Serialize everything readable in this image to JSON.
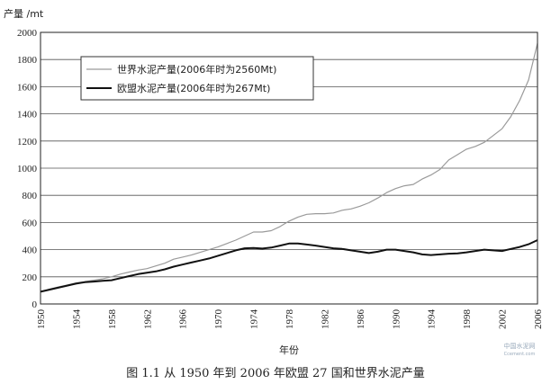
{
  "chart_data": {
    "type": "line",
    "title": "",
    "xlabel": "年份",
    "ylabel": "产量 /mt",
    "xlim": [
      1950,
      2006
    ],
    "ylim": [
      0,
      2000
    ],
    "x_ticks": [
      1950,
      1954,
      1958,
      1962,
      1966,
      1970,
      1974,
      1978,
      1982,
      1986,
      1990,
      1994,
      1998,
      2002,
      2006
    ],
    "y_ticks": [
      0,
      200,
      400,
      600,
      800,
      1000,
      1200,
      1400,
      1600,
      1800,
      2000
    ],
    "grid": true,
    "legend_position": "top-left",
    "x": [
      1950,
      1951,
      1952,
      1953,
      1954,
      1955,
      1956,
      1957,
      1958,
      1959,
      1960,
      1961,
      1962,
      1963,
      1964,
      1965,
      1966,
      1967,
      1968,
      1969,
      1970,
      1971,
      1972,
      1973,
      1974,
      1975,
      1976,
      1977,
      1978,
      1979,
      1980,
      1981,
      1982,
      1983,
      1984,
      1985,
      1986,
      1987,
      1988,
      1989,
      1990,
      1991,
      1992,
      1993,
      1994,
      1995,
      1996,
      1997,
      1998,
      1999,
      2000,
      2001,
      2002,
      2003,
      2004,
      2005,
      2006
    ],
    "series": [
      {
        "name": "世界水泥产量(2006年时为2560Mt)",
        "color": "#9a9a9a",
        "values": [
          90,
          110,
          125,
          140,
          155,
          165,
          175,
          185,
          200,
          220,
          235,
          250,
          260,
          280,
          300,
          330,
          345,
          360,
          380,
          400,
          420,
          445,
          470,
          500,
          530,
          530,
          540,
          570,
          610,
          640,
          660,
          665,
          665,
          670,
          690,
          700,
          720,
          745,
          780,
          820,
          850,
          870,
          880,
          920,
          950,
          990,
          1060,
          1100,
          1140,
          1160,
          1190,
          1240,
          1290,
          1380,
          1500,
          1650,
          1920
        ]
      },
      {
        "name": "欧盟水泥产量(2006年时为267Mt)",
        "color": "#111111",
        "values": [
          90,
          105,
          120,
          135,
          150,
          160,
          165,
          170,
          175,
          190,
          205,
          220,
          230,
          240,
          255,
          275,
          290,
          305,
          320,
          335,
          355,
          375,
          395,
          410,
          412,
          408,
          415,
          430,
          445,
          445,
          438,
          430,
          420,
          410,
          405,
          395,
          385,
          375,
          385,
          400,
          400,
          390,
          380,
          365,
          360,
          365,
          370,
          372,
          380,
          390,
          400,
          395,
          390,
          405,
          420,
          440,
          470
        ]
      }
    ]
  },
  "caption": "图 1.1   从 1950 年到 2006 年欧盟 27 国和世界水泥产量",
  "watermark": {
    "line1": "中国水泥网",
    "line2": "Ccement.com"
  }
}
